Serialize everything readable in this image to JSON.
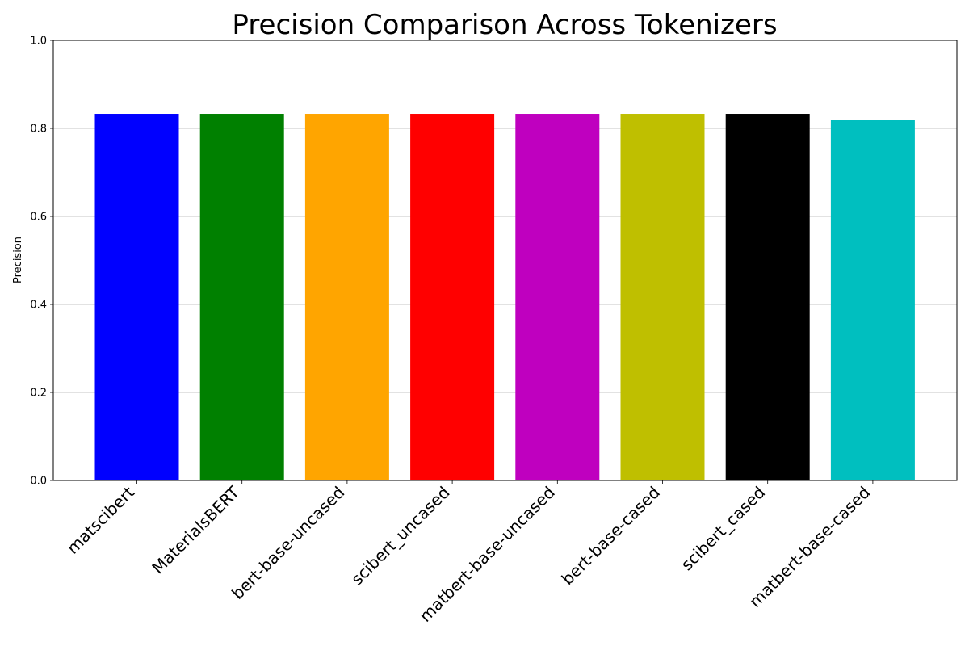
{
  "chart_data": {
    "type": "bar",
    "title": "Precision Comparison Across Tokenizers",
    "xlabel": "",
    "ylabel": "Precision",
    "ylim": [
      0,
      1.0
    ],
    "yticks": [
      "0.0",
      "0.2",
      "0.4",
      "0.6",
      "0.8",
      "1.0"
    ],
    "grid": "y-axis",
    "categories": [
      "matscibert",
      "MaterialsBERT",
      "bert-base-uncased",
      "scibert_uncased",
      "matbert-base-uncased",
      "bert-base-cased",
      "scibert_cased",
      "matbert-base-cased"
    ],
    "values": [
      0.833,
      0.833,
      0.833,
      0.833,
      0.833,
      0.833,
      0.833,
      0.82
    ],
    "colors": [
      "#0000ff",
      "#008000",
      "#ffa500",
      "#ff0000",
      "#bf00bf",
      "#bfbf00",
      "#000000",
      "#00bfbf"
    ]
  }
}
